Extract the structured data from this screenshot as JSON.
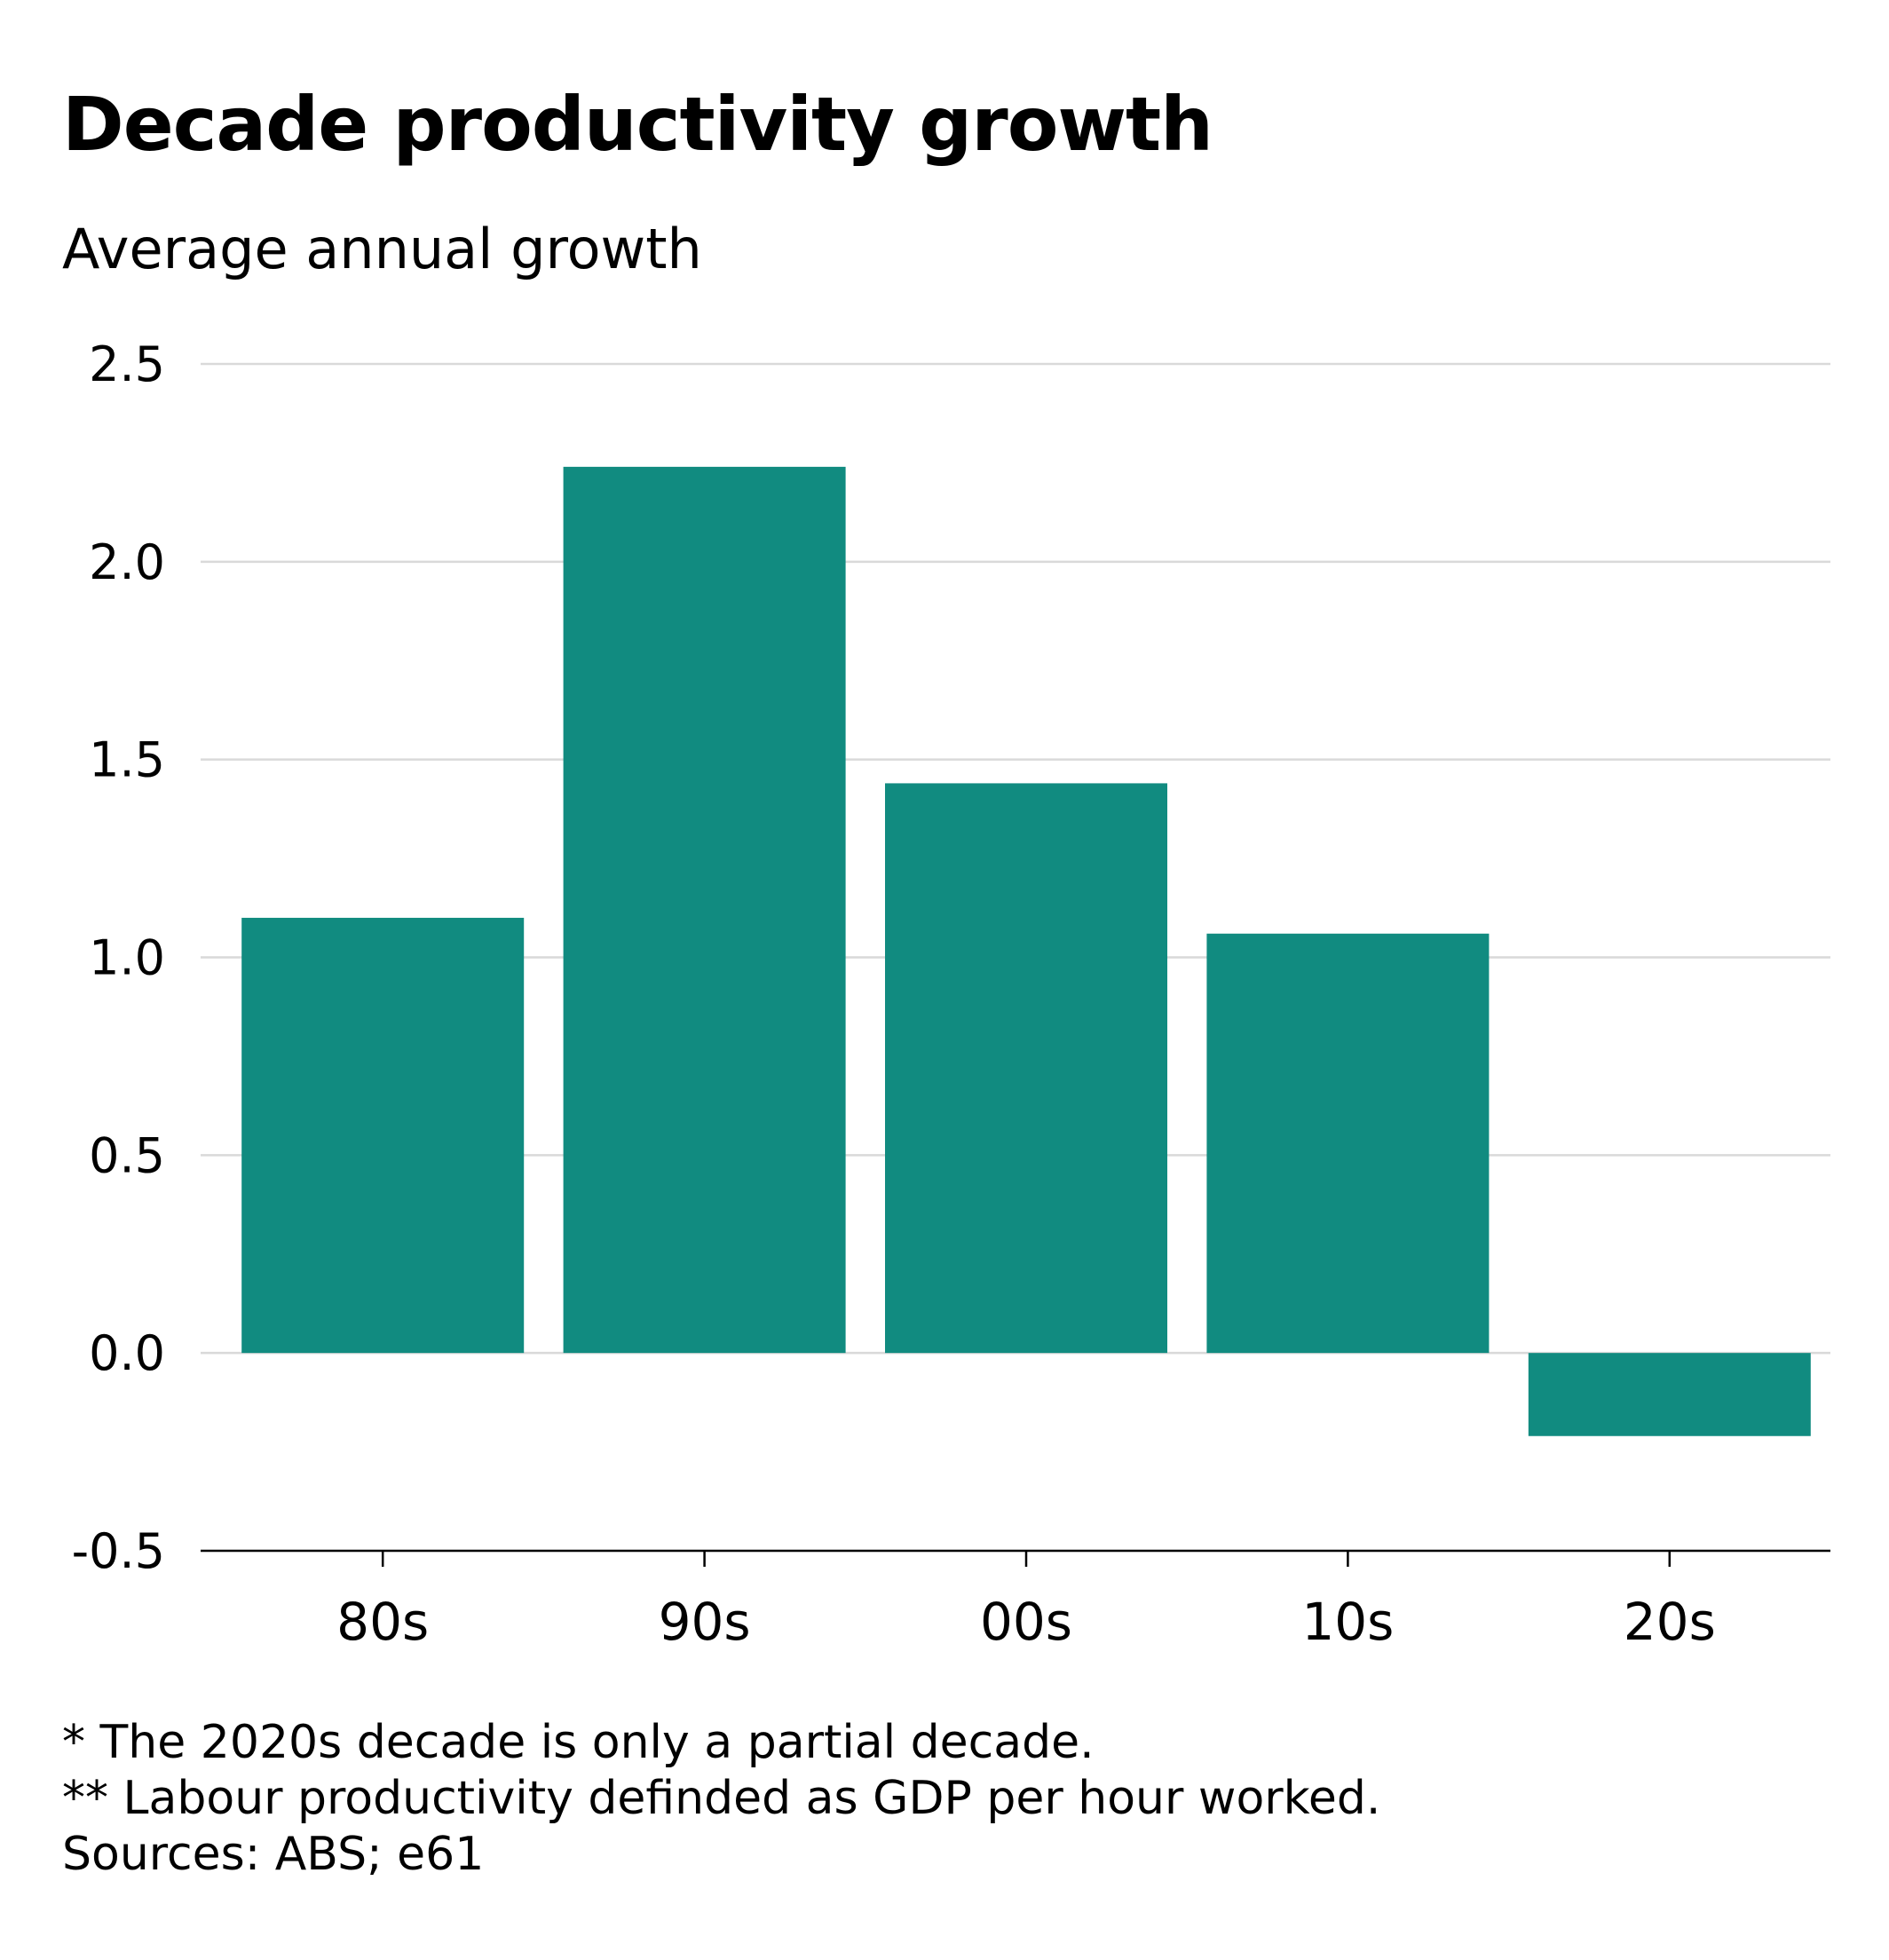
{
  "title": "Decade productivity growth",
  "subtitle": "Average annual growth",
  "colors": {
    "bar": "#118b80",
    "grid": "#d9d9d9",
    "axis": "#000000"
  },
  "notes": [
    "* The 2020s decade is only a partial decade.",
    "** Labour productivity definded as GDP per hour worked.",
    "Sources: ABS; e61"
  ],
  "chart_data": {
    "type": "bar",
    "title": "Decade productivity growth",
    "subtitle": "Average annual growth",
    "xlabel": "",
    "ylabel": "",
    "categories": [
      "80s",
      "90s",
      "00s",
      "10s",
      "20s"
    ],
    "values": [
      1.1,
      2.24,
      1.44,
      1.06,
      -0.21
    ],
    "ylim": [
      -0.5,
      2.5
    ],
    "yticks": [
      2.5,
      2.0,
      1.5,
      1.0,
      0.5,
      0.0,
      -0.5
    ],
    "ytick_labels": [
      "2.5",
      "2.0",
      "1.5",
      "1.0",
      "0.5",
      "0.0",
      "-0.5"
    ],
    "grid": true,
    "legend": "none"
  }
}
